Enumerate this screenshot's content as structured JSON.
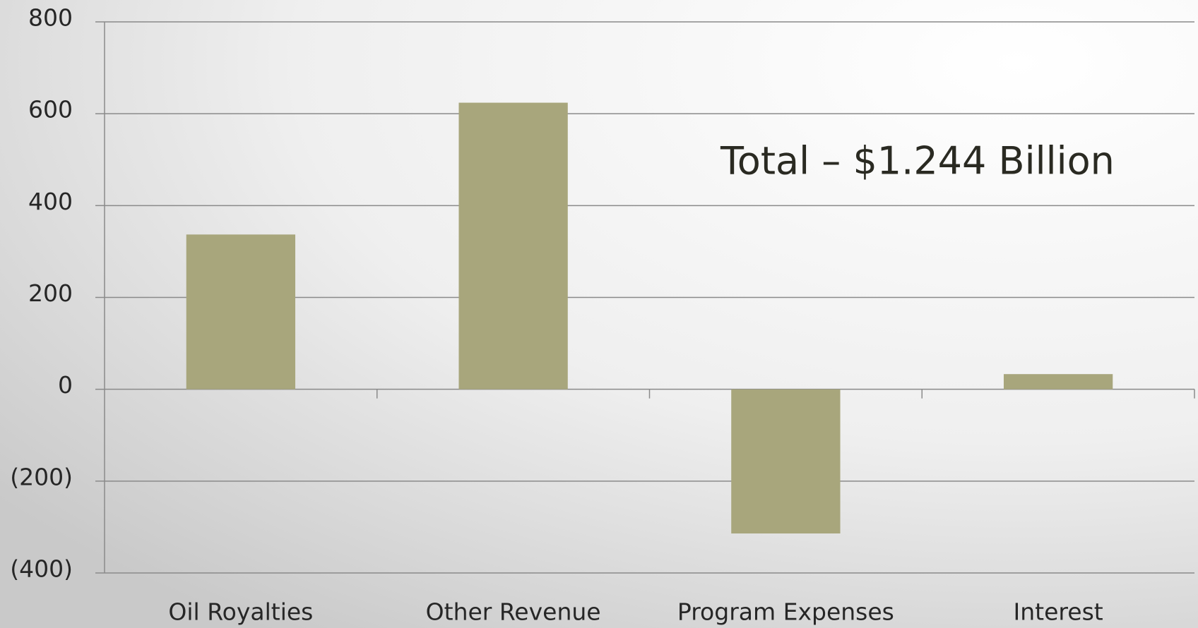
{
  "chart_data": {
    "type": "bar",
    "annotation": "Total – $1.244 Billion",
    "categories": [
      "Oil Royalties",
      "Other Revenue",
      "Program Expenses",
      "Interest"
    ],
    "values": [
      337,
      624,
      -314,
      33
    ],
    "color": "#a8a67c",
    "ylim": [
      -400,
      800
    ],
    "yticks": [
      {
        "value": -400,
        "label": "(400)"
      },
      {
        "value": -200,
        "label": "(200)"
      },
      0,
      200,
      400,
      600,
      800
    ],
    "grid": true
  }
}
